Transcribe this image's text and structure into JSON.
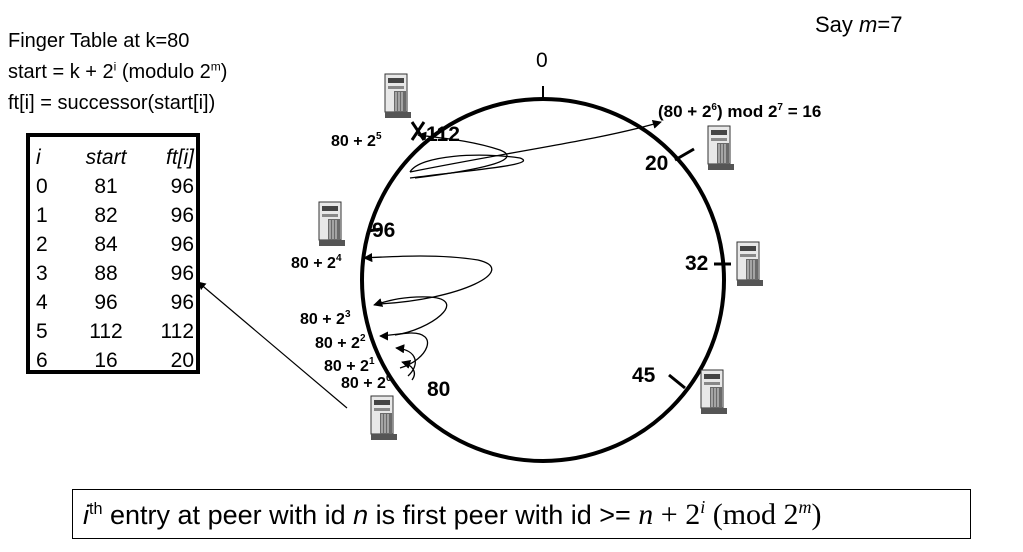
{
  "say": {
    "prefix": "Say ",
    "var": "m",
    "suffix": "=7"
  },
  "header": {
    "line1": "Finger Table at k=80",
    "line2_a": "start = k + 2",
    "line2_sup1": "i",
    "line2_b": " (modulo 2",
    "line2_sup2": "m",
    "line2_c": ")",
    "line3": "ft[i] = successor(start[i])"
  },
  "finger_table": {
    "columns": [
      "i",
      "start",
      "ft[i]"
    ],
    "rows": [
      [
        "0",
        "81",
        "96"
      ],
      [
        "1",
        "82",
        "96"
      ],
      [
        "2",
        "84",
        "96"
      ],
      [
        "3",
        "88",
        "96"
      ],
      [
        "4",
        "96",
        "96"
      ],
      [
        "5",
        "112",
        "112"
      ],
      [
        "6",
        "16",
        "20"
      ]
    ]
  },
  "ring": {
    "top_label": "0",
    "nodes": [
      "112",
      "20",
      "96",
      "32",
      "45",
      "80"
    ],
    "finger_labels": [
      {
        "base": "80 + 2",
        "exp": "5"
      },
      {
        "base": "80 + 2",
        "exp": "4"
      },
      {
        "base": "80 + 2",
        "exp": "3"
      },
      {
        "base": "80 + 2",
        "exp": "2"
      },
      {
        "base": "80 + 2",
        "exp": "1"
      },
      {
        "base": "80 + 2",
        "exp": "0"
      }
    ],
    "mod_label": {
      "a": "(80 + 2",
      "a_exp": "6",
      "b": ") mod 2",
      "b_exp": "7",
      "c": " = 16"
    }
  },
  "bottom": {
    "i": "i",
    "th": "th",
    "text1": " entry at peer with id ",
    "n": "n",
    "text2": " is first peer with id >= ",
    "formula": {
      "n": "n",
      "plus": " + 2",
      "exp_i": "i",
      "mod": " (mod 2",
      "exp_m": "m",
      "close": ")"
    }
  },
  "colors": {
    "line": "#000000",
    "server_light": "#e8e8e8",
    "server_dark": "#6a6a6a"
  }
}
